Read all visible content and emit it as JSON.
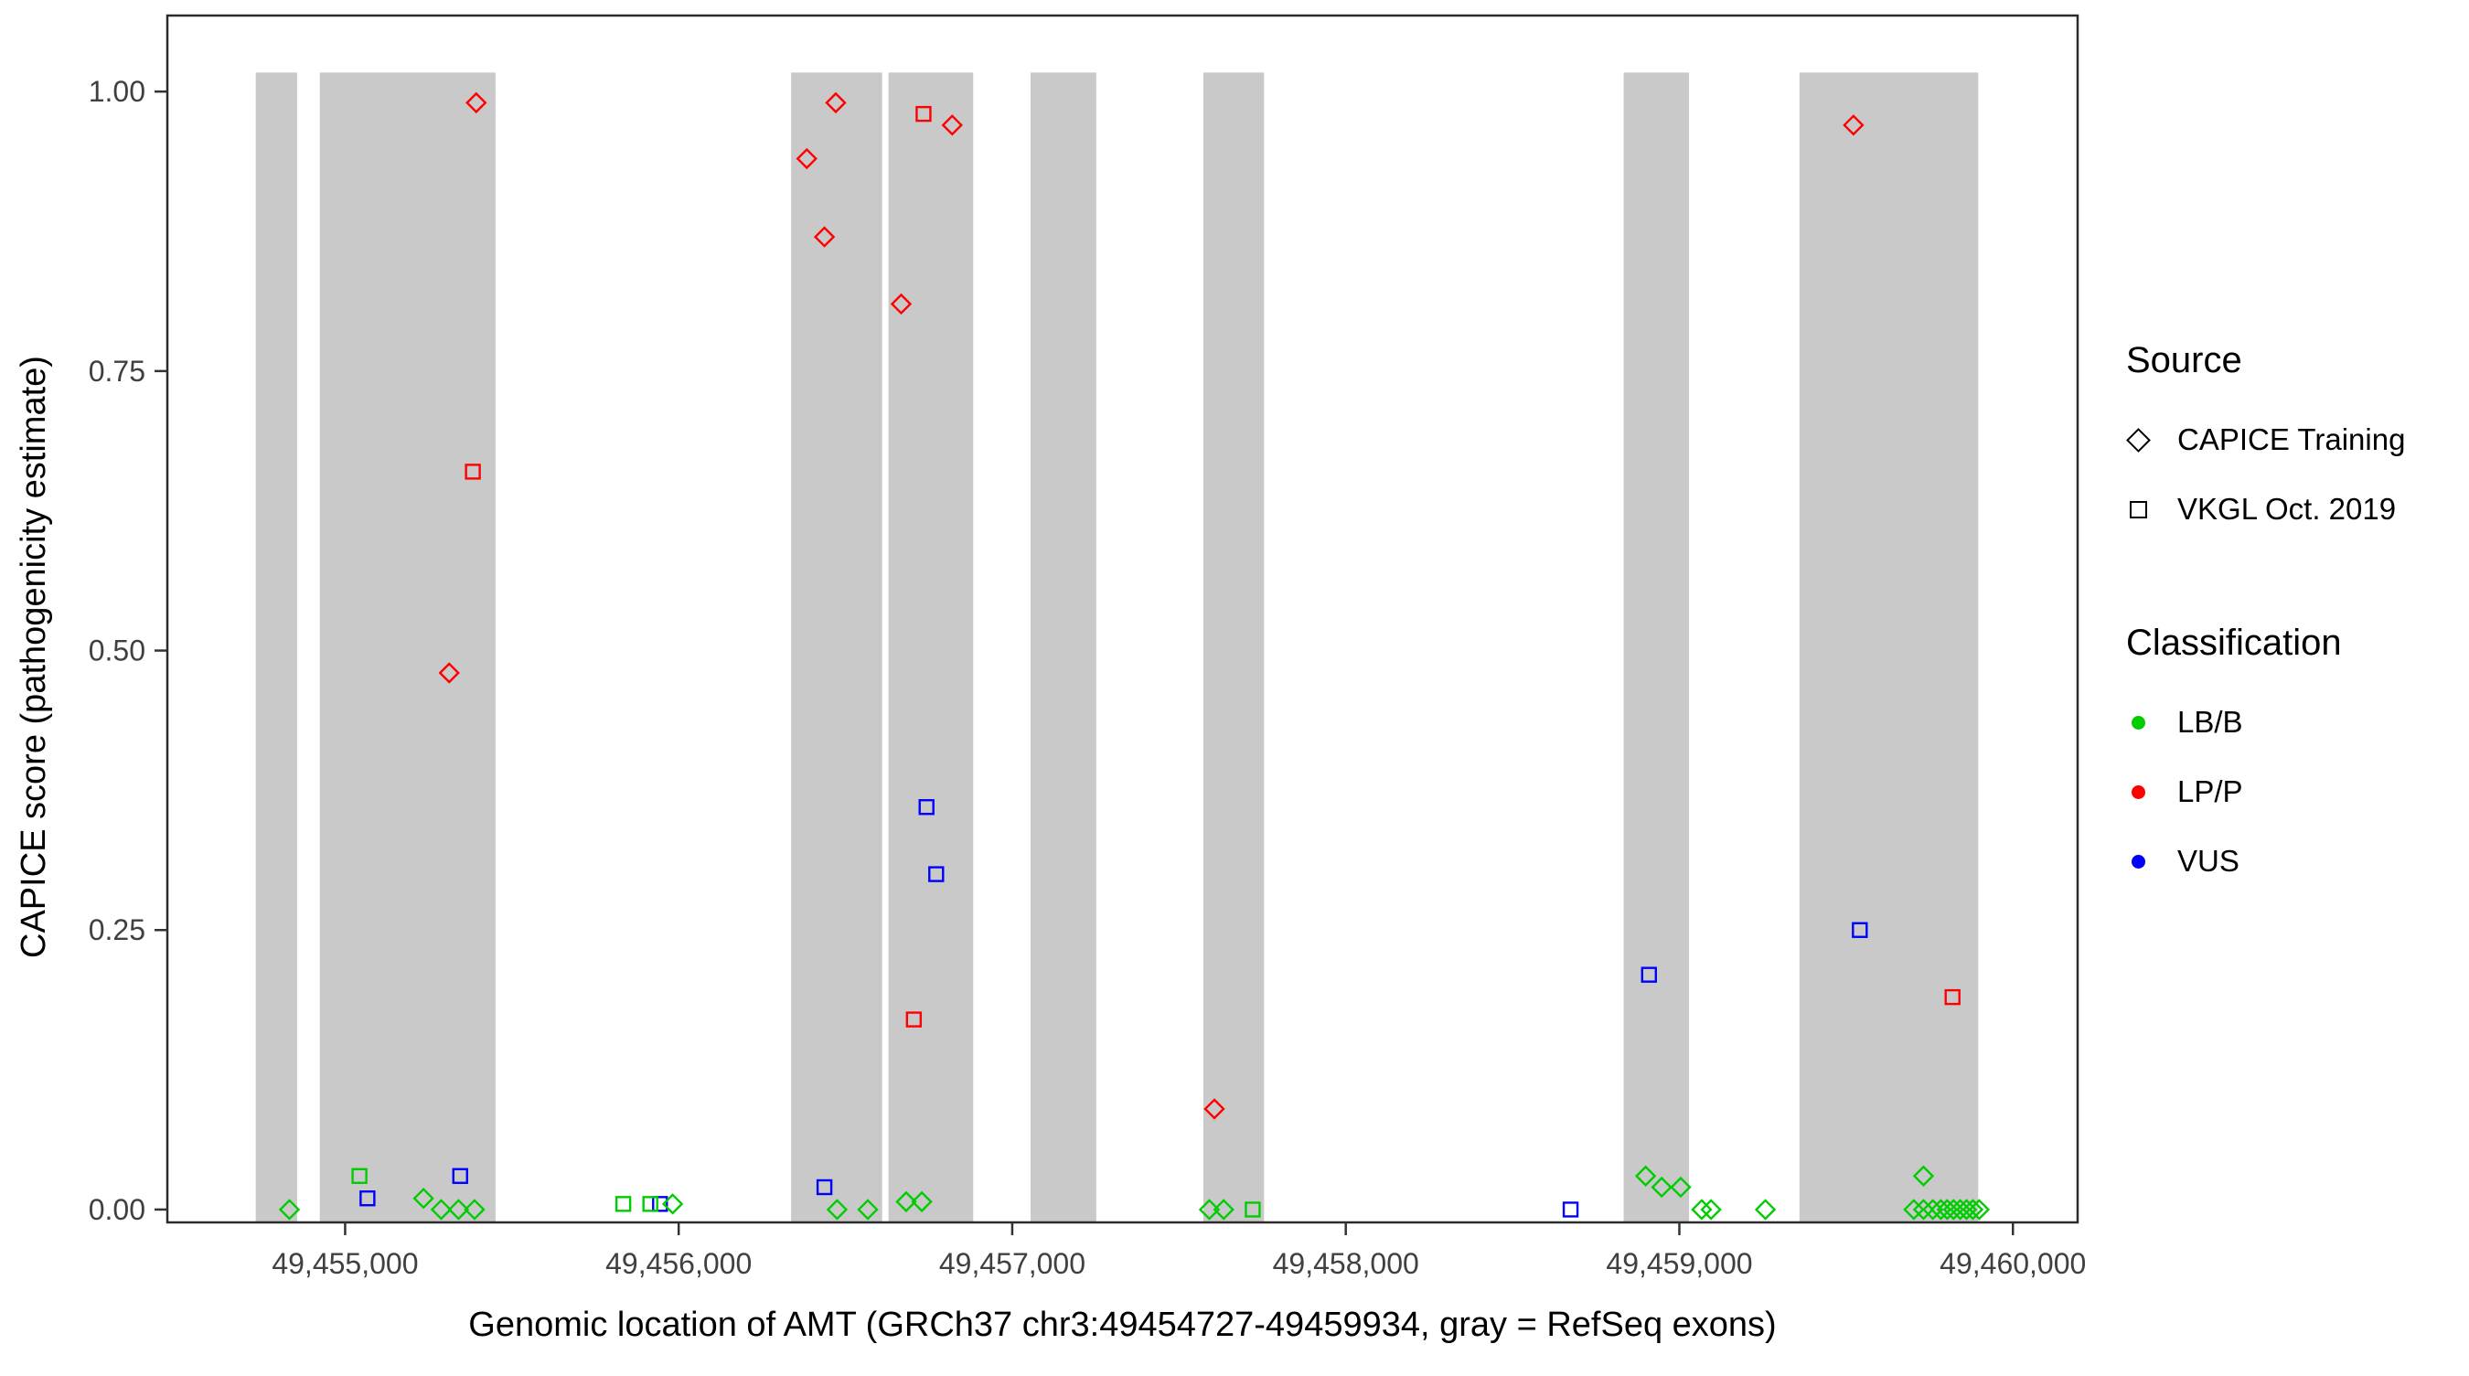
{
  "page": {
    "background": "#FFFFFF"
  },
  "chart_data": {
    "type": "scatter",
    "title": "",
    "xlabel": "Genomic location of AMT (GRCh37 chr3:49454727-49459934, gray = RefSeq exons)",
    "ylabel": "CAPICE score (pathogenicity estimate)",
    "xlim": [
      49454467,
      49460194
    ],
    "ylim": [
      -0.0115,
      1.068
    ],
    "grid": false,
    "panel_border": true,
    "x_ticks": [
      {
        "value": 49455000,
        "label": "49,455,000"
      },
      {
        "value": 49456000,
        "label": "49,456,000"
      },
      {
        "value": 49457000,
        "label": "49,457,000"
      },
      {
        "value": 49458000,
        "label": "49,458,000"
      },
      {
        "value": 49459000,
        "label": "49,459,000"
      },
      {
        "value": 49460000,
        "label": "49,460,000"
      }
    ],
    "y_ticks": [
      {
        "value": 0.0,
        "label": "0.00"
      },
      {
        "value": 0.25,
        "label": "0.25"
      },
      {
        "value": 0.5,
        "label": "0.50"
      },
      {
        "value": 0.75,
        "label": "0.75"
      },
      {
        "value": 1.0,
        "label": "1.00"
      }
    ],
    "exon_fill": "#C9C9C9",
    "exon_band": {
      "ymin": -0.0115,
      "ymax": 1.017
    },
    "exons": [
      {
        "start": 49454732,
        "end": 49454856
      },
      {
        "start": 49454924,
        "end": 49455451
      },
      {
        "start": 49456337,
        "end": 49456610
      },
      {
        "start": 49456629,
        "end": 49456883
      },
      {
        "start": 49457055,
        "end": 49457252
      },
      {
        "start": 49457573,
        "end": 49457755
      },
      {
        "start": 49458833,
        "end": 49459029
      },
      {
        "start": 49459360,
        "end": 49459896
      }
    ],
    "series": [
      {
        "source": "CAPICE Training",
        "classification": "LP/P",
        "shape": "diamond",
        "color": "#FF0000",
        "points": [
          [
            49455393,
            0.99
          ],
          [
            49456471,
            0.99
          ],
          [
            49456384,
            0.94
          ],
          [
            49456437,
            0.87
          ],
          [
            49456667,
            0.81
          ],
          [
            49456820,
            0.97
          ],
          [
            49459522,
            0.97
          ],
          [
            49455312,
            0.48
          ],
          [
            49457606,
            0.09
          ]
        ]
      },
      {
        "source": "VKGL Oct. 2019",
        "classification": "LP/P",
        "shape": "square",
        "color": "#FF0000",
        "points": [
          [
            49455383,
            0.66
          ],
          [
            49456734,
            0.98
          ],
          [
            49456705,
            0.17
          ],
          [
            49459819,
            0.19
          ]
        ]
      },
      {
        "source": "VKGL Oct. 2019",
        "classification": "VUS",
        "shape": "square",
        "color": "#0000FF",
        "points": [
          [
            49456743,
            0.36
          ],
          [
            49456772,
            0.3
          ],
          [
            49459541,
            0.25
          ],
          [
            49458909,
            0.21
          ],
          [
            49455067,
            0.01
          ],
          [
            49455345,
            0.03
          ],
          [
            49455944,
            0.005
          ],
          [
            49456437,
            0.02
          ],
          [
            49458674,
            0.0
          ]
        ]
      },
      {
        "source": "VKGL Oct. 2019",
        "classification": "LB/B",
        "shape": "square",
        "color": "#00CD00",
        "points": [
          [
            49455043,
            0.03
          ],
          [
            49455834,
            0.005
          ],
          [
            49455915,
            0.005
          ],
          [
            49457721,
            0.0
          ]
        ]
      },
      {
        "source": "CAPICE Training",
        "classification": "LB/B",
        "shape": "diamond",
        "color": "#00CD00",
        "points": [
          [
            49454833,
            0.0
          ],
          [
            49455235,
            0.01
          ],
          [
            49455288,
            0.0
          ],
          [
            49455340,
            0.0
          ],
          [
            49455388,
            0.0
          ],
          [
            49455982,
            0.005
          ],
          [
            49456475,
            0.0
          ],
          [
            49456567,
            0.0
          ],
          [
            49456682,
            0.007
          ],
          [
            49456729,
            0.007
          ],
          [
            49457591,
            0.0
          ],
          [
            49457634,
            0.0
          ],
          [
            49458899,
            0.03
          ],
          [
            49458947,
            0.02
          ],
          [
            49459004,
            0.02
          ],
          [
            49459067,
            0.0
          ],
          [
            49459095,
            0.0
          ],
          [
            49459258,
            0.0
          ],
          [
            49459732,
            0.03
          ],
          [
            49459703,
            0.0
          ],
          [
            49459732,
            0.0
          ],
          [
            49459760,
            0.0
          ],
          [
            49459784,
            0.0
          ],
          [
            49459803,
            0.0
          ],
          [
            49459822,
            0.0
          ],
          [
            49459842,
            0.0
          ],
          [
            49459861,
            0.0
          ],
          [
            49459880,
            0.0
          ],
          [
            49459899,
            0.0
          ]
        ]
      }
    ]
  },
  "legend": {
    "source": {
      "title": "Source",
      "items": [
        {
          "shape": "diamond",
          "label": "CAPICE Training"
        },
        {
          "shape": "square",
          "label": "VKGL Oct. 2019"
        }
      ]
    },
    "classification": {
      "title": "Classification",
      "items": [
        {
          "label": "LB/B",
          "color": "#00CD00"
        },
        {
          "label": "LP/P",
          "color": "#FF0000"
        },
        {
          "label": "VUS",
          "color": "#0000FF"
        }
      ]
    }
  }
}
